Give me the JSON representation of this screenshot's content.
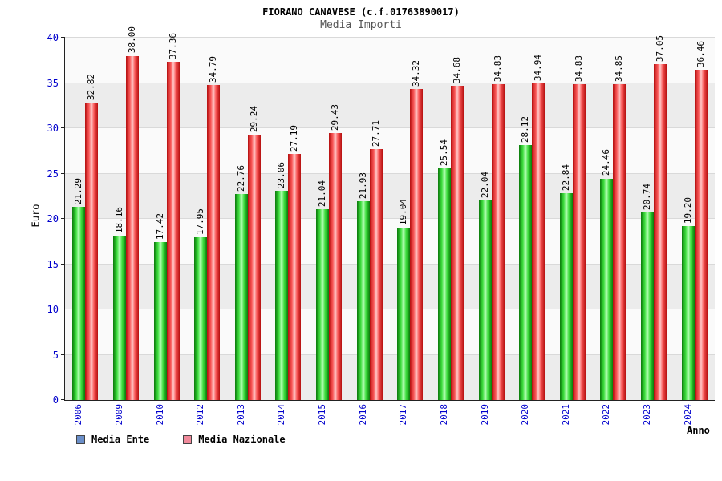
{
  "title": "FIORANO CANAVESE (c.f.01763890017)",
  "subtitle": "Media Importi",
  "legend": [
    {
      "label": "Media Ente",
      "color": "#6b8fc9"
    },
    {
      "label": "Media Nazionale",
      "color": "#f08a9b"
    }
  ],
  "chart_data": {
    "type": "bar",
    "title": "FIORANO CANAVESE (c.f.01763890017)",
    "subtitle": "Media Importi",
    "xlabel": "Anno",
    "ylabel": "Euro",
    "ylim": [
      0,
      40
    ],
    "ytick_step": 5,
    "grid": true,
    "legend_position": "bottom-left",
    "categories": [
      "2006",
      "2009",
      "2010",
      "2012",
      "2013",
      "2014",
      "2015",
      "2016",
      "2017",
      "2018",
      "2019",
      "2020",
      "2021",
      "2022",
      "2023",
      "2024"
    ],
    "series": [
      {
        "name": "Media Ente",
        "color": "#22cc22",
        "values": [
          21.29,
          18.16,
          17.42,
          17.95,
          22.76,
          23.06,
          21.04,
          21.93,
          19.04,
          25.54,
          22.04,
          28.12,
          22.84,
          24.46,
          20.74,
          19.2
        ]
      },
      {
        "name": "Media Nazionale",
        "color": "#ee3333",
        "values": [
          32.82,
          38.0,
          37.36,
          34.79,
          29.24,
          27.19,
          29.43,
          27.71,
          34.32,
          34.68,
          34.83,
          34.94,
          34.83,
          34.85,
          37.05,
          36.46
        ]
      }
    ]
  }
}
